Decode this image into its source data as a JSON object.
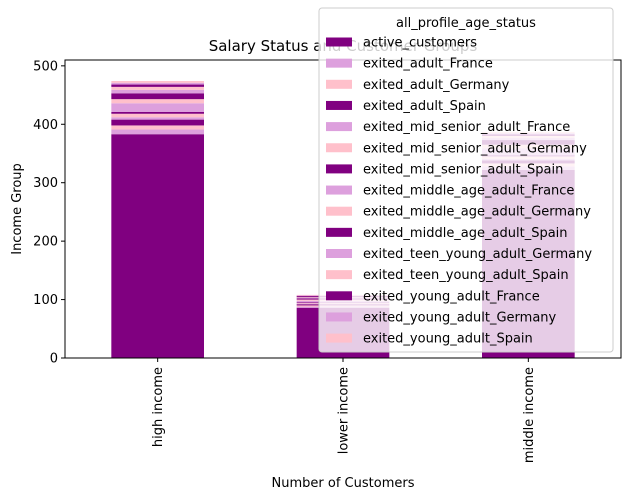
{
  "chart_data": {
    "type": "bar",
    "stacked": true,
    "title": "Salary Status and Customer Groups",
    "xlabel": "Number of Customers",
    "ylabel": "Income Group",
    "ylim": [
      0,
      510
    ],
    "yticks": [
      0,
      100,
      200,
      300,
      400,
      500
    ],
    "categories": [
      "high income",
      "lower income",
      "middle income"
    ],
    "legend": {
      "title": "all_profile_age_status",
      "placement": "upper-right"
    },
    "colors": {
      "purple": "#800080",
      "plum": "#dda0dd",
      "pink": "#ffc0cb"
    },
    "series": [
      {
        "name": "active_customers",
        "color": "#800080",
        "values": [
          383,
          86,
          322
        ]
      },
      {
        "name": "exited_adult_France",
        "color": "#dda0dd",
        "values": [
          8,
          2,
          6
        ]
      },
      {
        "name": "exited_adult_Germany",
        "color": "#ffc0cb",
        "values": [
          7,
          2,
          5
        ]
      },
      {
        "name": "exited_adult_Spain",
        "color": "#800080",
        "values": [
          10,
          2,
          5
        ]
      },
      {
        "name": "exited_mid_senior_adult_France",
        "color": "#dda0dd",
        "values": [
          4,
          1,
          3
        ]
      },
      {
        "name": "exited_mid_senior_adult_Germany",
        "color": "#ffc0cb",
        "values": [
          6,
          1,
          4
        ]
      },
      {
        "name": "exited_mid_senior_adult_Spain",
        "color": "#800080",
        "values": [
          3,
          1,
          2
        ]
      },
      {
        "name": "exited_middle_age_adult_France",
        "color": "#dda0dd",
        "values": [
          15,
          3,
          12
        ]
      },
      {
        "name": "exited_middle_age_adult_Germany",
        "color": "#ffc0cb",
        "values": [
          7,
          2,
          6
        ]
      },
      {
        "name": "exited_middle_age_adult_Spain",
        "color": "#800080",
        "values": [
          10,
          2,
          8
        ]
      },
      {
        "name": "exited_teen_young_adult_Germany",
        "color": "#dda0dd",
        "values": [
          6,
          1,
          4
        ]
      },
      {
        "name": "exited_teen_young_adult_Spain",
        "color": "#ffc0cb",
        "values": [
          5,
          1,
          3
        ]
      },
      {
        "name": "exited_young_adult_France",
        "color": "#800080",
        "values": [
          4,
          2,
          3
        ]
      },
      {
        "name": "exited_young_adult_Germany",
        "color": "#dda0dd",
        "values": [
          3,
          1,
          2
        ]
      },
      {
        "name": "exited_young_adult_Spain",
        "color": "#ffc0cb",
        "values": [
          3,
          1,
          2
        ]
      }
    ]
  }
}
